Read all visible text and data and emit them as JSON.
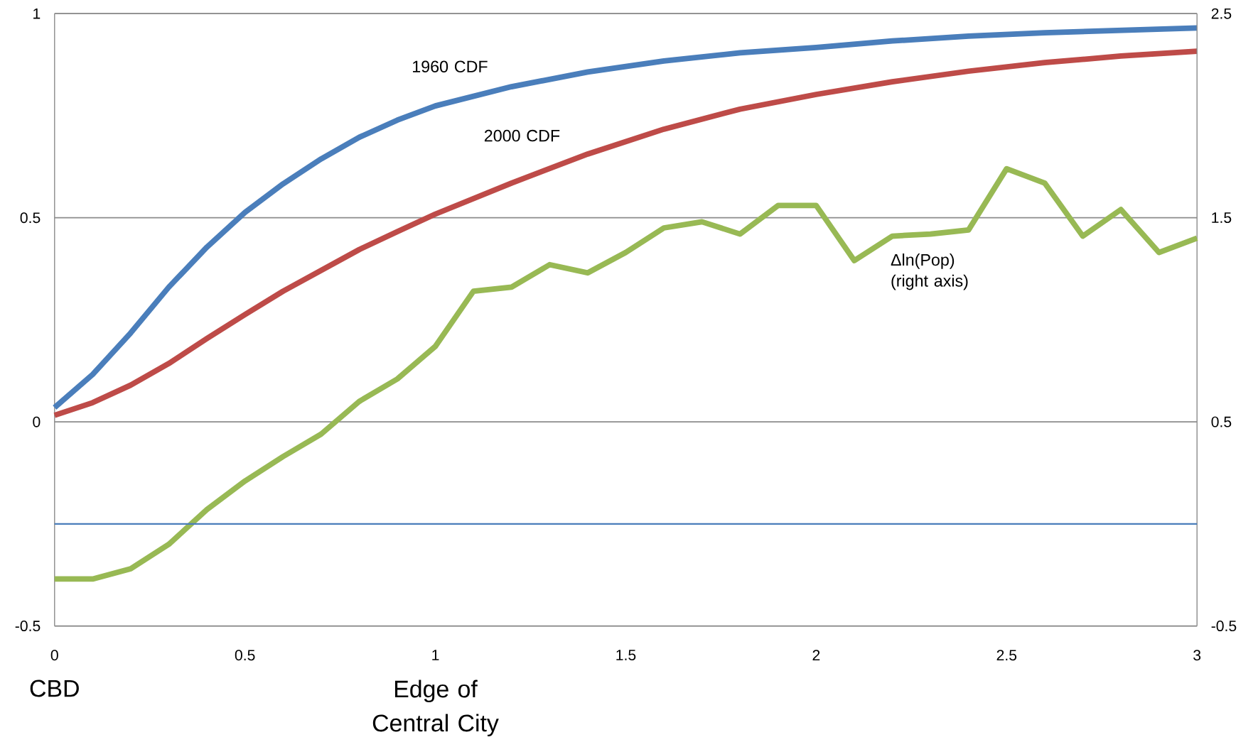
{
  "chart_data": {
    "type": "line",
    "xlim": [
      0,
      3
    ],
    "xticks": [
      0,
      0.5,
      1,
      1.5,
      2,
      2.5,
      3
    ],
    "ylim": [
      -0.5,
      1
    ],
    "yticks": [
      -0.5,
      0,
      0.5,
      1
    ],
    "y2lim": [
      -0.5,
      2.5
    ],
    "y2ticks": [
      -0.5,
      0.5,
      1.5,
      2.5
    ],
    "grid": "y",
    "legend": false,
    "marker": "none",
    "line_style": "solid",
    "series": [
      {
        "name": "1960 CDF",
        "color": "#4a7ebb",
        "x": [
          0,
          0.1,
          0.2,
          0.3,
          0.4,
          0.5,
          0.6,
          0.7,
          0.8,
          0.9,
          1.0,
          1.2,
          1.4,
          1.6,
          1.8,
          2.0,
          2.2,
          2.4,
          2.6,
          2.8,
          3.0
        ],
        "values": [
          0.035,
          0.116,
          0.218,
          0.33,
          0.428,
          0.513,
          0.583,
          0.644,
          0.697,
          0.739,
          0.774,
          0.821,
          0.857,
          0.884,
          0.904,
          0.917,
          0.933,
          0.945,
          0.953,
          0.959,
          0.965
        ]
      },
      {
        "name": "2000 CDF",
        "color": "#be4b48",
        "x": [
          0,
          0.1,
          0.2,
          0.3,
          0.4,
          0.5,
          0.6,
          0.7,
          0.8,
          0.9,
          1.0,
          1.2,
          1.4,
          1.6,
          1.8,
          2.0,
          2.2,
          2.4,
          2.6,
          2.8,
          3.0
        ],
        "values": [
          0.016,
          0.047,
          0.09,
          0.143,
          0.204,
          0.263,
          0.32,
          0.371,
          0.422,
          0.466,
          0.509,
          0.585,
          0.656,
          0.717,
          0.766,
          0.802,
          0.833,
          0.859,
          0.88,
          0.896,
          0.908
        ]
      },
      {
        "name": "Δln(Pop) (right axis)",
        "color": "#98b954",
        "axis": "y2",
        "x": [
          0,
          0.1,
          0.2,
          0.3,
          0.4,
          0.5,
          0.6,
          0.7,
          0.8,
          0.9,
          1.0,
          1.1,
          1.2,
          1.3,
          1.4,
          1.5,
          1.6,
          1.7,
          1.8,
          1.9,
          2.0,
          2.1,
          2.2,
          2.3,
          2.4,
          2.5,
          2.6,
          2.7,
          2.8,
          2.9,
          3.0
        ],
        "values": [
          -0.27,
          -0.27,
          -0.22,
          -0.1,
          0.07,
          0.21,
          0.33,
          0.44,
          0.6,
          0.71,
          0.87,
          1.14,
          1.16,
          1.27,
          1.23,
          1.33,
          1.45,
          1.48,
          1.42,
          1.56,
          1.56,
          1.29,
          1.41,
          1.42,
          1.44,
          1.74,
          1.67,
          1.41,
          1.54,
          1.33,
          1.4
        ]
      }
    ],
    "ref_lines": [
      {
        "axis": "y2",
        "value": 0,
        "color": "#4a7ebb"
      }
    ],
    "annotations": [
      "CBD",
      "Edge of Central City"
    ]
  }
}
